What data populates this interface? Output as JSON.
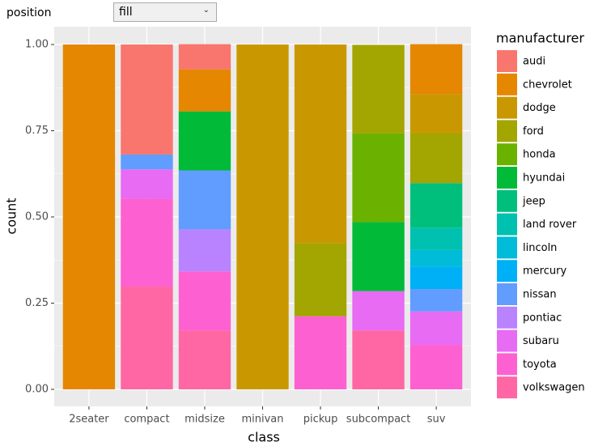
{
  "controls": {
    "label": "position",
    "selected": "fill"
  },
  "chart_data": {
    "type": "stacked_bar",
    "x_label": "class",
    "y_label": "count",
    "legend_title": "manufacturer",
    "categories": [
      "2seater",
      "compact",
      "midsize",
      "minivan",
      "pickup",
      "subcompact",
      "suv"
    ],
    "ylim": [
      0,
      1
    ],
    "yticks": [
      {
        "value": 0,
        "label": "0.00"
      },
      {
        "value": 0.25,
        "label": "0.25"
      },
      {
        "value": 0.5,
        "label": "0.50"
      },
      {
        "value": 0.75,
        "label": "0.75"
      },
      {
        "value": 1,
        "label": "1.00"
      }
    ],
    "grid": true,
    "legend": "right",
    "series": [
      {
        "name": "audi",
        "color": "#F8766D",
        "values": [
          0,
          0.319,
          0.073,
          0,
          0,
          0,
          0
        ]
      },
      {
        "name": "chevrolet",
        "color": "#E58700",
        "values": [
          1,
          0,
          0.122,
          0,
          0,
          0,
          0.145
        ]
      },
      {
        "name": "dodge",
        "color": "#C99800",
        "values": [
          0,
          0,
          0,
          1,
          0.576,
          0,
          0.113
        ]
      },
      {
        "name": "ford",
        "color": "#A3A500",
        "values": [
          0,
          0,
          0,
          0,
          0.212,
          0.257,
          0.145
        ]
      },
      {
        "name": "honda",
        "color": "#6BB100",
        "values": [
          0,
          0,
          0,
          0,
          0,
          0.257,
          0
        ]
      },
      {
        "name": "hyundai",
        "color": "#00BA38",
        "values": [
          0,
          0,
          0.171,
          0,
          0,
          0.2,
          0
        ]
      },
      {
        "name": "jeep",
        "color": "#00BF7D",
        "values": [
          0,
          0,
          0,
          0,
          0,
          0,
          0.129
        ]
      },
      {
        "name": "land rover",
        "color": "#00C0AF",
        "values": [
          0,
          0,
          0,
          0,
          0,
          0,
          0.065
        ]
      },
      {
        "name": "lincoln",
        "color": "#00BCD8",
        "values": [
          0,
          0,
          0,
          0,
          0,
          0,
          0.048
        ]
      },
      {
        "name": "mercury",
        "color": "#00B0F6",
        "values": [
          0,
          0,
          0,
          0,
          0,
          0,
          0.065
        ]
      },
      {
        "name": "nissan",
        "color": "#619CFF",
        "values": [
          0,
          0.043,
          0.171,
          0,
          0,
          0,
          0.065
        ]
      },
      {
        "name": "pontiac",
        "color": "#B983FF",
        "values": [
          0,
          0,
          0.122,
          0,
          0,
          0,
          0
        ]
      },
      {
        "name": "subaru",
        "color": "#E76BF3",
        "values": [
          0,
          0.085,
          0,
          0,
          0,
          0.114,
          0.097
        ]
      },
      {
        "name": "toyota",
        "color": "#FD61D1",
        "values": [
          0,
          0.255,
          0.171,
          0,
          0.212,
          0,
          0.129
        ]
      },
      {
        "name": "volkswagen",
        "color": "#FF67A4",
        "values": [
          0,
          0.298,
          0.171,
          0,
          0,
          0.171,
          0
        ]
      }
    ]
  }
}
